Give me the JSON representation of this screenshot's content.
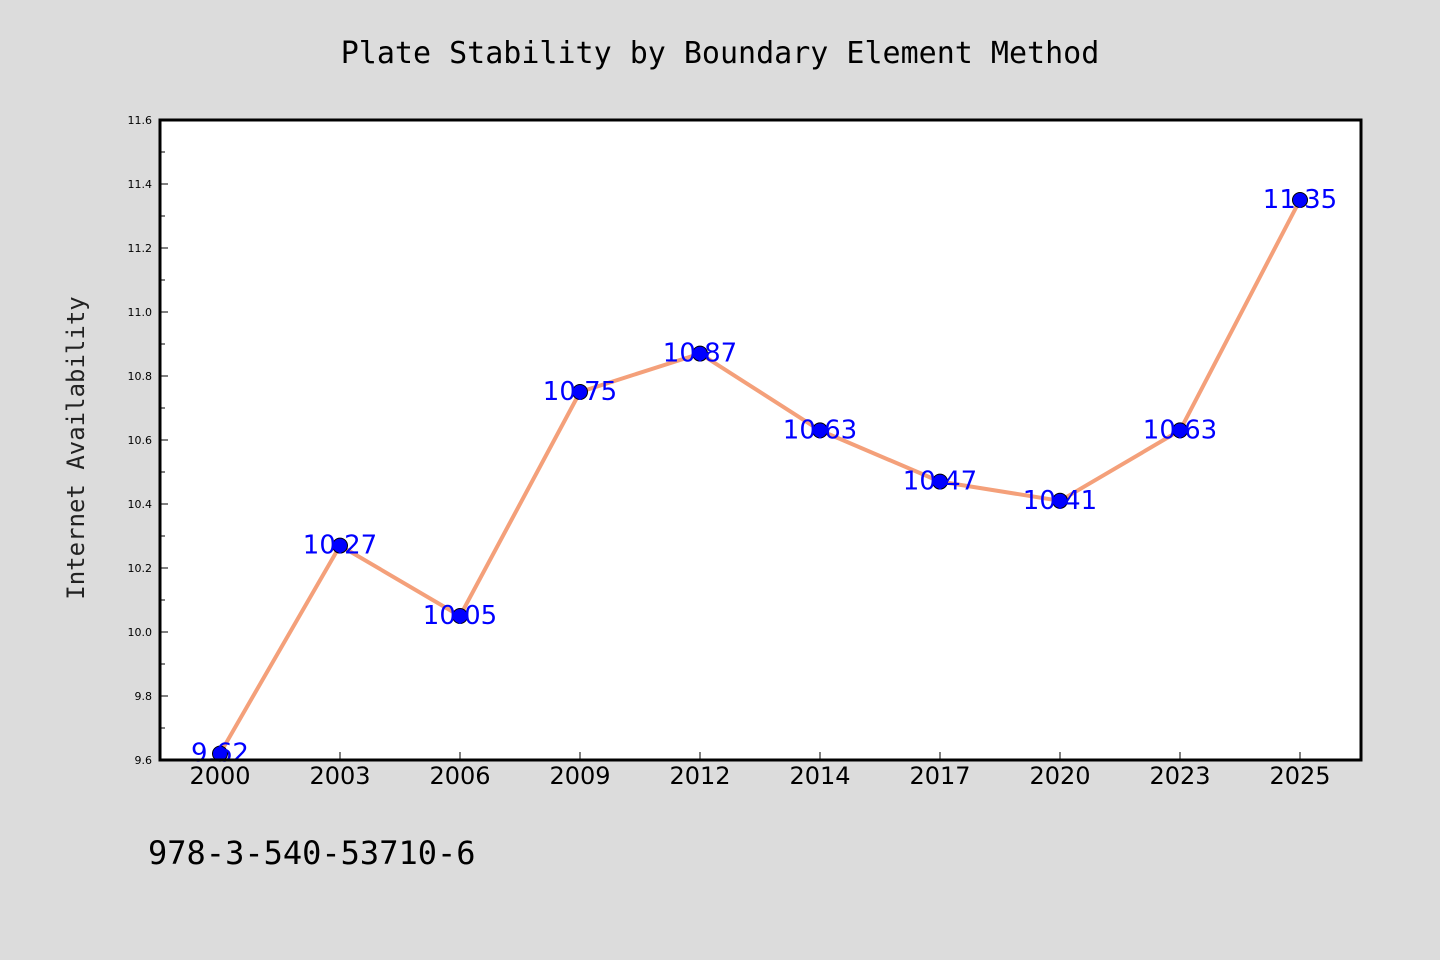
{
  "chart_data": {
    "type": "line",
    "title": "Plate Stability by Boundary Element Method",
    "xlabel": "",
    "ylabel": "Internet Availability",
    "categories": [
      "2000",
      "2003",
      "2006",
      "2009",
      "2012",
      "2014",
      "2017",
      "2020",
      "2023",
      "2025"
    ],
    "values": [
      9.62,
      10.27,
      10.05,
      10.75,
      10.87,
      10.63,
      10.47,
      10.41,
      10.63,
      11.35
    ],
    "value_labels": [
      "9.62",
      "10.27",
      "10.05",
      "10.75",
      "10.87",
      "10.63",
      "10.47",
      "10.41",
      "10.63",
      "11.35"
    ],
    "ylim": [
      9.6,
      11.6
    ],
    "yticks": [
      "9.6",
      "9.8",
      "10.0",
      "10.2",
      "10.4",
      "10.6",
      "10.8",
      "11.0",
      "11.2",
      "11.4",
      "11.6"
    ],
    "grid": false,
    "legend": "none",
    "colors": {
      "line": "#f4a07a",
      "marker": "#0000ff",
      "data_label": "#0000ff",
      "background": "#dcdcdc",
      "plot_area": "#ffffff"
    }
  },
  "footer_text": "978-3-540-53710-6"
}
